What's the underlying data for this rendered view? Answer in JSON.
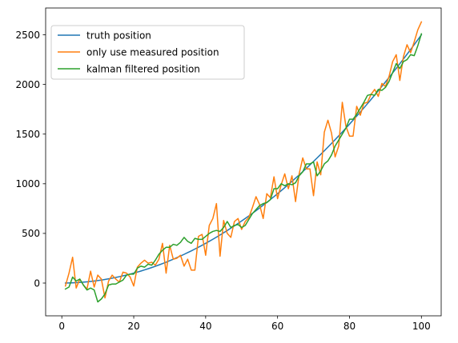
{
  "chart_data": {
    "type": "line",
    "title": "",
    "xlabel": "",
    "ylabel": "",
    "xlim": [
      -4.5,
      105.5
    ],
    "ylim": [
      -330,
      2770
    ],
    "xticks": [
      0,
      20,
      40,
      60,
      80,
      100
    ],
    "yticks": [
      0,
      500,
      1000,
      1500,
      2000,
      2500
    ],
    "grid": false,
    "legend_position": "top-left",
    "x": [
      1,
      2,
      3,
      4,
      5,
      6,
      7,
      8,
      9,
      10,
      11,
      12,
      13,
      14,
      15,
      16,
      17,
      18,
      19,
      20,
      21,
      22,
      23,
      24,
      25,
      26,
      27,
      28,
      29,
      30,
      31,
      32,
      33,
      34,
      35,
      36,
      37,
      38,
      39,
      40,
      41,
      42,
      43,
      44,
      45,
      46,
      47,
      48,
      49,
      50,
      51,
      52,
      53,
      54,
      55,
      56,
      57,
      58,
      59,
      60,
      61,
      62,
      63,
      64,
      65,
      66,
      67,
      68,
      69,
      70,
      71,
      72,
      73,
      74,
      75,
      76,
      77,
      78,
      79,
      80,
      81,
      82,
      83,
      84,
      85,
      86,
      87,
      88,
      89,
      90,
      91,
      92,
      93,
      94,
      95,
      96,
      97,
      98,
      99,
      100
    ],
    "series": [
      {
        "name": "truth position",
        "color": "#1f77b4",
        "values": [
          0.25,
          1,
          2.25,
          4,
          6.25,
          9,
          12.25,
          16,
          20.25,
          25,
          30.25,
          36,
          42.25,
          49,
          56.25,
          64,
          72.25,
          81,
          90.25,
          100,
          110.25,
          121,
          132.25,
          144,
          156.25,
          169,
          182.25,
          196,
          210.25,
          225,
          240.25,
          256,
          272.25,
          289,
          306.25,
          324,
          342.25,
          361,
          380.25,
          400,
          420.25,
          441,
          462.25,
          484,
          506.25,
          529,
          552.25,
          576,
          600.25,
          625,
          650.25,
          676,
          702.25,
          729,
          756.25,
          784,
          812.25,
          841,
          870.25,
          900,
          930.25,
          961,
          992.25,
          1024,
          1056.25,
          1089,
          1122.25,
          1156,
          1190.25,
          1225,
          1260.25,
          1296,
          1332.25,
          1369,
          1406.25,
          1444,
          1482.25,
          1521,
          1560.25,
          1600,
          1640.25,
          1681,
          1722.25,
          1764,
          1806.25,
          1849,
          1892.25,
          1936,
          1980.25,
          2025,
          2070.25,
          2116,
          2162.25,
          2209,
          2256.25,
          2304,
          2352.25,
          2401,
          2450.25,
          2500
        ]
      },
      {
        "name": "only use measured position",
        "color": "#ff7f0e",
        "values": [
          -30,
          100,
          260,
          -50,
          40,
          -20,
          -60,
          120,
          -40,
          80,
          40,
          -150,
          20,
          80,
          40,
          10,
          110,
          100,
          60,
          -30,
          160,
          200,
          230,
          200,
          210,
          180,
          240,
          400,
          100,
          380,
          240,
          250,
          280,
          170,
          240,
          130,
          130,
          470,
          490,
          280,
          580,
          650,
          800,
          270,
          630,
          500,
          460,
          620,
          650,
          540,
          620,
          660,
          760,
          870,
          790,
          650,
          900,
          860,
          1070,
          850,
          990,
          1100,
          950,
          1080,
          820,
          1100,
          1260,
          1150,
          1150,
          880,
          1220,
          1090,
          1520,
          1640,
          1510,
          1270,
          1380,
          1820,
          1580,
          1480,
          1480,
          1780,
          1690,
          1810,
          1820,
          1900,
          1950,
          1880,
          2010,
          1980,
          2080,
          2230,
          2300,
          2040,
          2280,
          2400,
          2320,
          2430,
          2550,
          2630
        ]
      },
      {
        "name": "kalman filtered position",
        "color": "#2ca02c",
        "values": [
          -60,
          -40,
          60,
          20,
          40,
          -20,
          -70,
          -50,
          -70,
          -190,
          -160,
          -110,
          -20,
          -10,
          -10,
          10,
          30,
          80,
          90,
          90,
          150,
          170,
          160,
          190,
          180,
          230,
          290,
          330,
          360,
          360,
          390,
          380,
          410,
          460,
          420,
          400,
          450,
          440,
          440,
          470,
          500,
          520,
          530,
          520,
          560,
          620,
          560,
          580,
          590,
          560,
          580,
          640,
          700,
          740,
          780,
          800,
          810,
          840,
          950,
          950,
          1000,
          980,
          1000,
          990,
          1010,
          1080,
          1120,
          1200,
          1200,
          1220,
          1080,
          1130,
          1200,
          1230,
          1290,
          1380,
          1440,
          1500,
          1560,
          1650,
          1650,
          1700,
          1760,
          1820,
          1890,
          1900,
          1890,
          1950,
          1940,
          1970,
          2030,
          2120,
          2210,
          2160,
          2230,
          2250,
          2300,
          2290,
          2390,
          2510
        ]
      }
    ]
  }
}
